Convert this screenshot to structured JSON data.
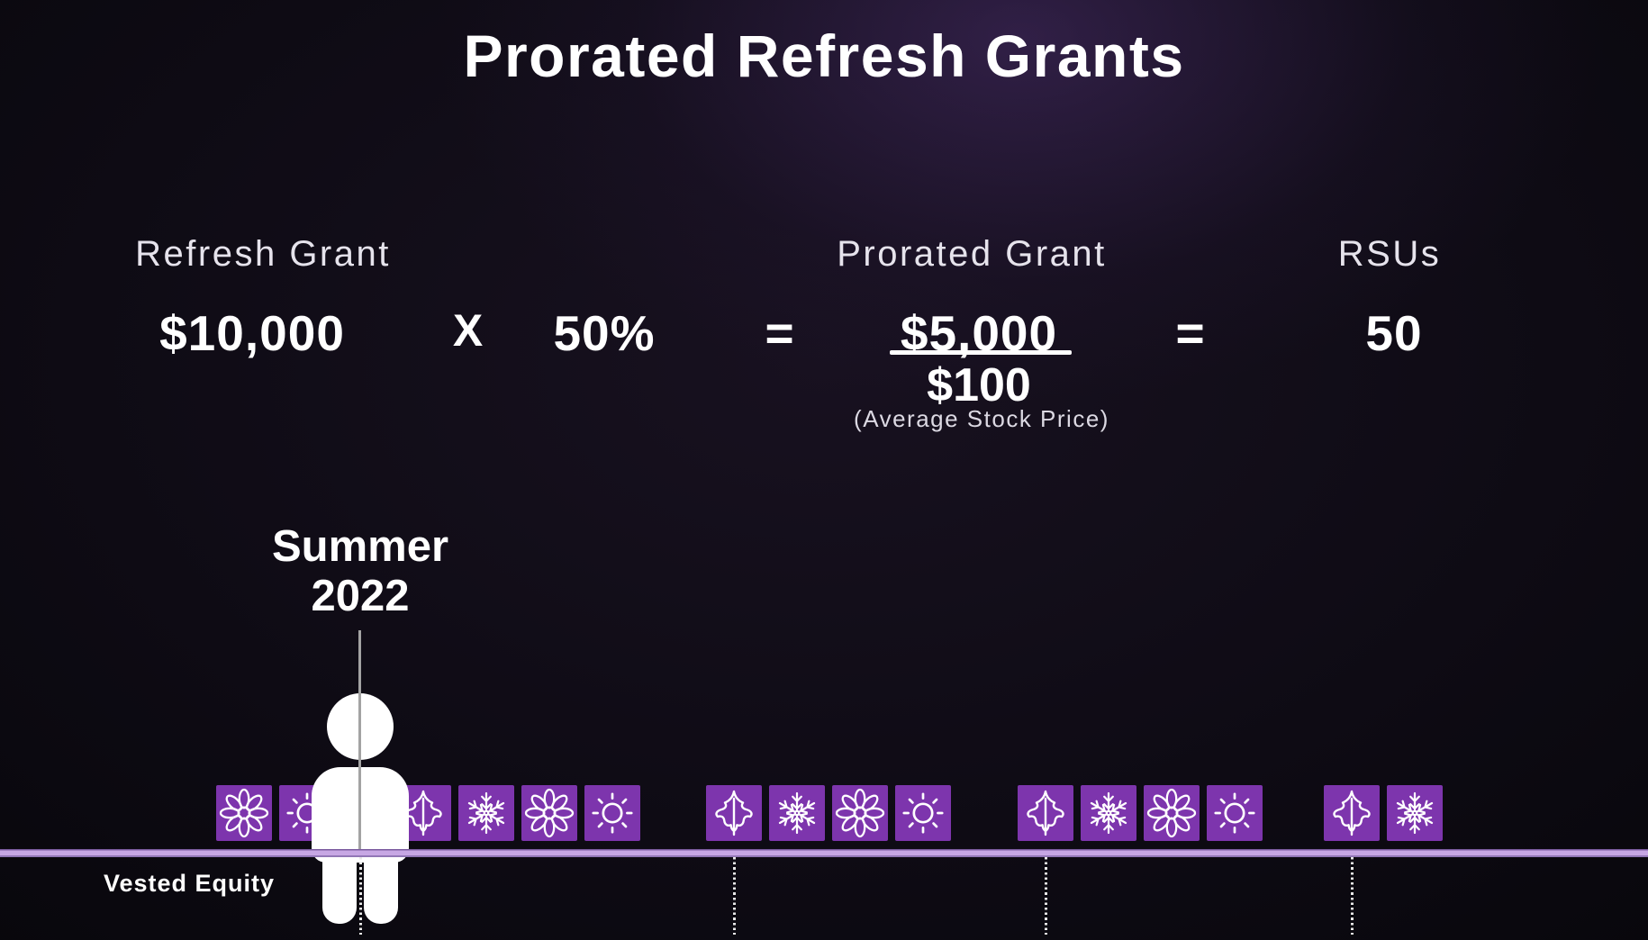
{
  "title": "Prorated Refresh Grants",
  "formula": {
    "refresh_grant": {
      "label": "Refresh Grant",
      "value": "$10,000"
    },
    "operator_multiply": "X",
    "proration_percent": "50%",
    "equals_1": "=",
    "prorated_grant": {
      "label": "Prorated Grant",
      "numerator": "$5,000",
      "denominator": "$100",
      "caption": "(Average Stock Price)"
    },
    "equals_2": "=",
    "rsus": {
      "label": "RSUs",
      "value": "50"
    }
  },
  "timeline": {
    "grant_marker": {
      "line1": "Summer",
      "line2": "2022"
    },
    "axis_label": "Vested Equity",
    "season_clusters": [
      {
        "seasons": [
          "spring",
          "summer"
        ]
      },
      {
        "seasons": [
          "fall",
          "winter",
          "spring",
          "summer"
        ]
      },
      {
        "seasons": [
          "fall",
          "winter",
          "spring",
          "summer"
        ]
      },
      {
        "seasons": [
          "fall",
          "winter",
          "spring",
          "summer"
        ]
      },
      {
        "seasons": [
          "fall",
          "winter"
        ]
      }
    ],
    "icon_names": {
      "spring": "flower-icon",
      "summer": "sun-icon",
      "fall": "leaf-icon",
      "winter": "snowflake-icon"
    }
  },
  "colors": {
    "accent_purple": "#7d35ad",
    "axis_lavender": "#c7a7e4",
    "text_white": "#ffffff"
  }
}
